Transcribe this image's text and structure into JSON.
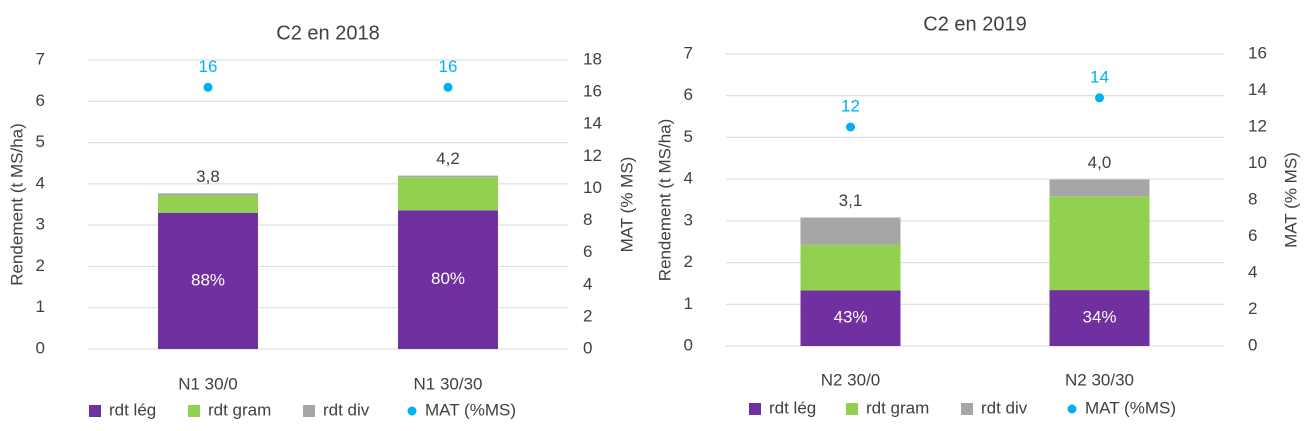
{
  "chart_data": [
    {
      "type": "bar",
      "title": "C2 en 2018",
      "ylabel": "Rendement (t MS/ha)",
      "y2label": "MAT (% MS)",
      "ylim": [
        0,
        7
      ],
      "y2lim": [
        0,
        18
      ],
      "yticks": [
        "0",
        "1",
        "2",
        "3",
        "4",
        "5",
        "6",
        "7"
      ],
      "y2ticks": [
        "0",
        "2",
        "4",
        "6",
        "8",
        "10",
        "12",
        "14",
        "16",
        "18"
      ],
      "categories": [
        "N1 30/0",
        "N1 30/30"
      ],
      "series": [
        {
          "name": "rdt lég",
          "values": [
            3.3,
            3.36
          ],
          "labels": [
            "88%",
            "80%"
          ]
        },
        {
          "name": "rdt gram",
          "values": [
            0.42,
            0.8
          ]
        },
        {
          "name": "rdt div",
          "values": [
            0.05,
            0.04
          ]
        },
        {
          "name": "MAT (%MS)",
          "values": [
            16.3,
            16.3
          ],
          "labels": [
            "16",
            "16"
          ],
          "axis": "secondary"
        }
      ],
      "totals": [
        "3,8",
        "4,2"
      ],
      "grid": true,
      "legend": "bottom"
    },
    {
      "type": "bar",
      "title": "C2 en 2019",
      "ylabel": "Rendement (t MS/ha)",
      "y2label": "MAT (% MS)",
      "ylim": [
        0,
        7
      ],
      "y2lim": [
        0,
        16
      ],
      "yticks": [
        "0",
        "1",
        "2",
        "3",
        "4",
        "5",
        "6",
        "7"
      ],
      "y2ticks": [
        "0",
        "2",
        "4",
        "6",
        "8",
        "10",
        "12",
        "14",
        "16"
      ],
      "categories": [
        "N2 30/0",
        "N2 30/30"
      ],
      "series": [
        {
          "name": "rdt lég",
          "values": [
            1.33,
            1.34
          ],
          "labels": [
            "43%",
            "34%"
          ]
        },
        {
          "name": "rdt gram",
          "values": [
            1.1,
            2.25
          ]
        },
        {
          "name": "rdt div",
          "values": [
            0.65,
            0.4
          ]
        },
        {
          "name": "MAT (%MS)",
          "values": [
            12.0,
            13.6
          ],
          "labels": [
            "12",
            "14"
          ],
          "axis": "secondary"
        }
      ],
      "totals": [
        "3,1",
        "4,0"
      ],
      "grid": true,
      "legend": "bottom"
    }
  ],
  "colors": {
    "rdt_leg": "#7030a0",
    "rdt_gram": "#92d050",
    "rdt_div": "#a6a6a6",
    "mat": "#00b0f0",
    "grid": "#d9d9d9",
    "text": "#404040"
  }
}
